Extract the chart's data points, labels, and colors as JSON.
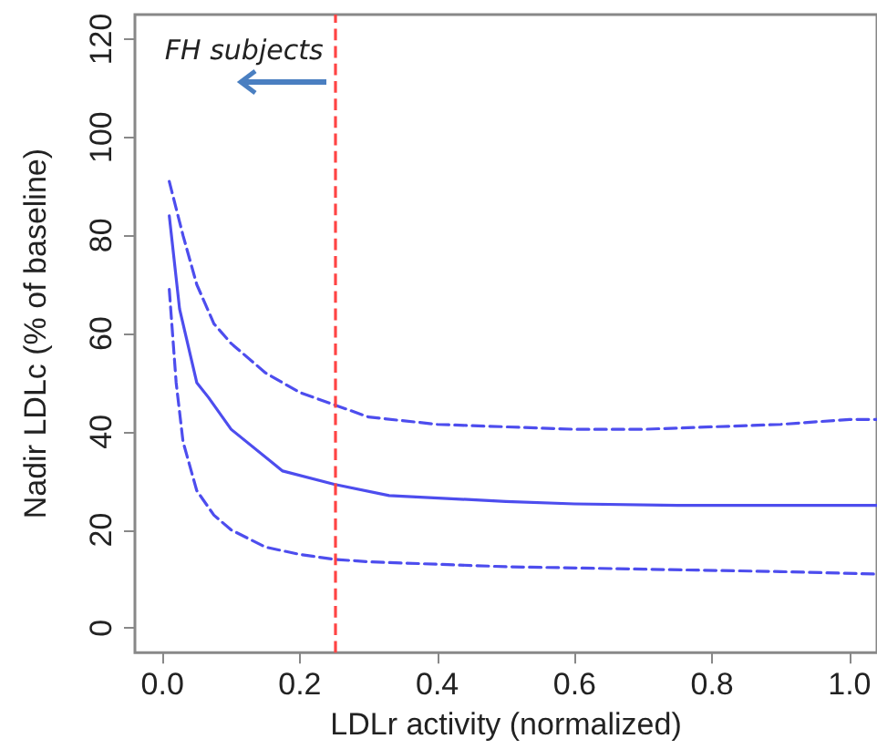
{
  "chart_data": {
    "type": "line",
    "xlabel": "LDLr activity (normalized)",
    "ylabel": "Nadir LDLc (% of baseline)",
    "xlim": [
      -0.04,
      1.04
    ],
    "xticks": [
      {
        "value": 0,
        "label": "0.0"
      },
      0.2,
      0.4,
      0.6,
      0.8,
      {
        "value": 1,
        "label": "1.0"
      }
    ],
    "ylim": [
      -5,
      125
    ],
    "yticks": [
      0,
      20,
      40,
      60,
      80,
      100,
      120
    ],
    "grid": false,
    "marker": "none",
    "series": [
      {
        "color": "#4d4dee",
        "line_style": "solid",
        "x": [
          0.01,
          0.025,
          0.05,
          0.067,
          0.1,
          0.175,
          0.25,
          0.33,
          0.5,
          0.6,
          0.75,
          1.0,
          1.04
        ],
        "values": [
          84,
          65,
          50,
          47,
          40.5,
          32,
          29.3,
          27,
          25.8,
          25.3,
          25,
          25,
          25
        ]
      },
      {
        "color": "#4d4dee",
        "line_style": "dashed",
        "x": [
          0.01,
          0.03,
          0.05,
          0.075,
          0.1,
          0.15,
          0.2,
          0.25,
          0.3,
          0.4,
          0.6,
          0.7,
          0.8,
          0.9,
          1.0,
          1.04
        ],
        "values": [
          91,
          80,
          70,
          62,
          58,
          52,
          48,
          45.5,
          43,
          41.5,
          40.5,
          40.5,
          41,
          41.5,
          42.5,
          42.5
        ]
      },
      {
        "color": "#4d4dee",
        "line_style": "dashed",
        "x": [
          0.01,
          0.02,
          0.03,
          0.05,
          0.075,
          0.1,
          0.15,
          0.2,
          0.25,
          0.3,
          0.5,
          0.7,
          0.9,
          1.04
        ],
        "values": [
          69,
          50,
          38,
          28,
          23,
          20,
          16.5,
          15,
          14,
          13.5,
          12.5,
          12,
          11.5,
          11
        ]
      }
    ],
    "ref_lines": [
      {
        "axis": "x",
        "value": 0.25,
        "color": "#ff4444",
        "line_style": "dashed"
      }
    ],
    "annotations": [
      "FH subjects"
    ]
  }
}
